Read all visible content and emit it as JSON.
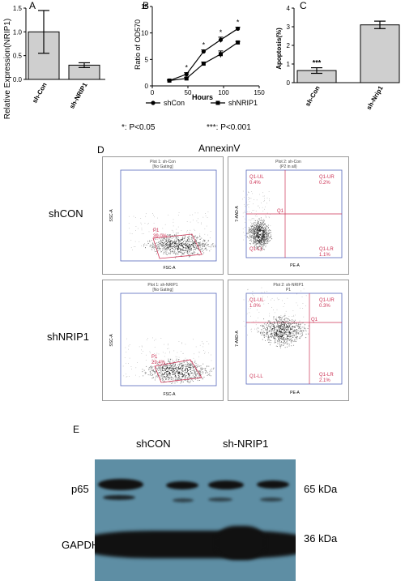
{
  "panels": {
    "A": {
      "label": "A",
      "chart_data": {
        "type": "bar",
        "categories": [
          "sh-Con",
          "sh-NRIP1"
        ],
        "values": [
          1.0,
          0.3
        ],
        "errors": [
          0.45,
          0.05
        ],
        "ylabel": "Relative Expression(NRIP1)",
        "ylim": [
          0,
          1.5
        ],
        "yticks": [
          "0.0",
          "0.5",
          "1.0",
          "1.5"
        ]
      }
    },
    "B": {
      "label": "B",
      "chart_data": {
        "type": "line",
        "xlabel": "Hours",
        "ylabel": "Ratio of OD570",
        "xlim": [
          0,
          150
        ],
        "ylim": [
          0,
          15
        ],
        "xticks": [
          "0",
          "50",
          "100",
          "150"
        ],
        "yticks": [
          "0",
          "5",
          "10",
          "15"
        ],
        "x": [
          24,
          48,
          72,
          96,
          120
        ],
        "significance": [
          "",
          "*",
          "*",
          "*",
          "*"
        ],
        "series": [
          {
            "name": "shCon",
            "marker": "circle",
            "values": [
              1.0,
              2.2,
              6.5,
              8.7,
              10.8
            ],
            "errors": [
              0.1,
              0.3,
              0.3,
              0.5,
              0.3
            ]
          },
          {
            "name": "shNRIP1",
            "marker": "square",
            "values": [
              1.0,
              1.4,
              4.2,
              6.0,
              8.2
            ],
            "errors": [
              0.1,
              0.2,
              0.3,
              0.6,
              0.2
            ]
          }
        ]
      }
    },
    "C": {
      "label": "C",
      "chart_data": {
        "type": "bar",
        "categories": [
          "sh-Con",
          "sh-Nrip1"
        ],
        "values": [
          0.65,
          3.1
        ],
        "errors": [
          0.15,
          0.2
        ],
        "ylabel": "Apoptosis(%)",
        "ylim": [
          0,
          4
        ],
        "yticks": [
          "0",
          "1",
          "2",
          "3",
          "4"
        ],
        "significance": [
          "***",
          ""
        ]
      }
    },
    "D": {
      "label": "D",
      "title": "AnnexinV",
      "rows": [
        {
          "label": "shCON",
          "scatter": {
            "title": "Plot 1: sh-Con",
            "subtitle": "[No Gating]",
            "gate": "P1",
            "pct": "39.0%",
            "xlabel": "FSC-A",
            "ylabel": "SSC-A"
          },
          "quadrant": {
            "title": "Plot 2: sh-Con",
            "subtitle": "(P2 in all)",
            "ul": "Q1-UL",
            "ul_pct": "0.4%",
            "ur": "Q1-UR",
            "ur_pct": "0.2%",
            "ll": "Q1-LL",
            "lr": "Q1-LR",
            "lr_pct": "1.1%",
            "center": "Q1",
            "xlabel": "PE-A",
            "ylabel": "7-AAD-A"
          }
        },
        {
          "label": "shNRIP1",
          "scatter": {
            "title": "Plot 1: sh-NRIP1",
            "subtitle": "[No Gating]",
            "gate": "P1",
            "pct": "29.4%",
            "xlabel": "FSC-A",
            "ylabel": "SSC-A"
          },
          "quadrant": {
            "title": "Plot 2: sh-NRIP1",
            "subtitle": "P1",
            "ul": "Q1-UL",
            "ul_pct": "1.0%",
            "ur": "Q1-UR",
            "ur_pct": "0.3%",
            "ll": "Q1-LL",
            "lr": "Q1-LR",
            "lr_pct": "2.1%",
            "center": "Q1",
            "xlabel": "PE-A",
            "ylabel": "7-AAD-A"
          }
        }
      ]
    },
    "E": {
      "label": "E",
      "groups": [
        "shCON",
        "sh-NRIP1"
      ],
      "bands": [
        {
          "name": "p65",
          "size": "65 kDa"
        },
        {
          "name": "GAPDH",
          "size": "36 kDa"
        }
      ]
    }
  },
  "notes": {
    "p05": "*: P<0.05",
    "p001": "***: P<0.001"
  }
}
